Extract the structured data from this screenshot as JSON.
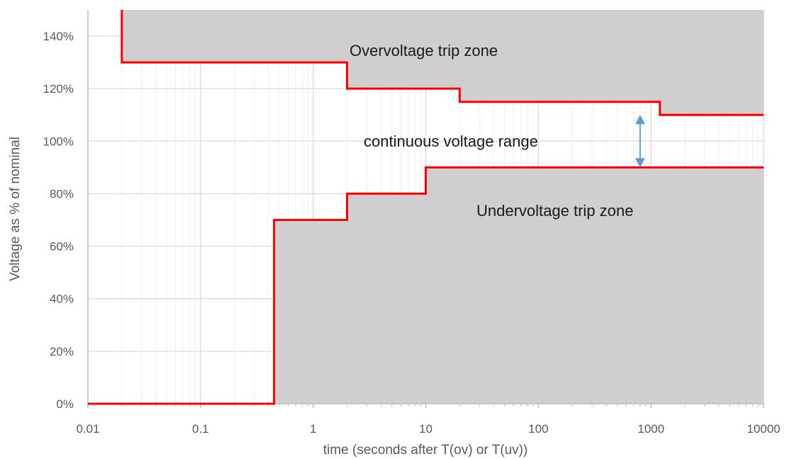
{
  "chart_data": {
    "type": "line",
    "xlabel": "time (seconds after T(ov) or T(uv))",
    "ylabel": "Voltage as % of nominal",
    "x_scale": "log",
    "xlim": [
      0.01,
      10000
    ],
    "ylim": [
      0,
      150
    ],
    "x_ticks": [
      0.01,
      0.1,
      1,
      10,
      100,
      1000,
      10000
    ],
    "x_tick_labels": [
      "0.01",
      "0.1",
      "1",
      "10",
      "100",
      "1000",
      "10000"
    ],
    "y_ticks": [
      0,
      20,
      40,
      60,
      80,
      100,
      120,
      140
    ],
    "y_tick_labels": [
      "0%",
      "20%",
      "40%",
      "60%",
      "80%",
      "100%",
      "120%",
      "140%"
    ],
    "grid": true,
    "series": [
      {
        "color": "#ff0000",
        "points": [
          [
            0.02,
            150
          ],
          [
            0.02,
            130
          ],
          [
            2,
            130
          ],
          [
            2,
            120
          ],
          [
            20,
            120
          ],
          [
            20,
            115
          ],
          [
            1200,
            115
          ],
          [
            1200,
            110
          ],
          [
            10000,
            110
          ]
        ]
      },
      {
        "color": "#ff0000",
        "points": [
          [
            0.01,
            0
          ],
          [
            0.45,
            0
          ],
          [
            0.45,
            70
          ],
          [
            2,
            70
          ],
          [
            2,
            80
          ],
          [
            10,
            80
          ],
          [
            10,
            90
          ],
          [
            10000,
            90
          ]
        ]
      }
    ],
    "annotations": {
      "overvoltage": "Overvoltage trip zone",
      "continuous": "continuous voltage range",
      "undervoltage": "Undervoltage trip zone"
    },
    "range_arrow": {
      "x": 800,
      "y_from": 90,
      "y_to": 110,
      "color": "#5b9bd5"
    },
    "zone_fill": "#d0cece"
  }
}
